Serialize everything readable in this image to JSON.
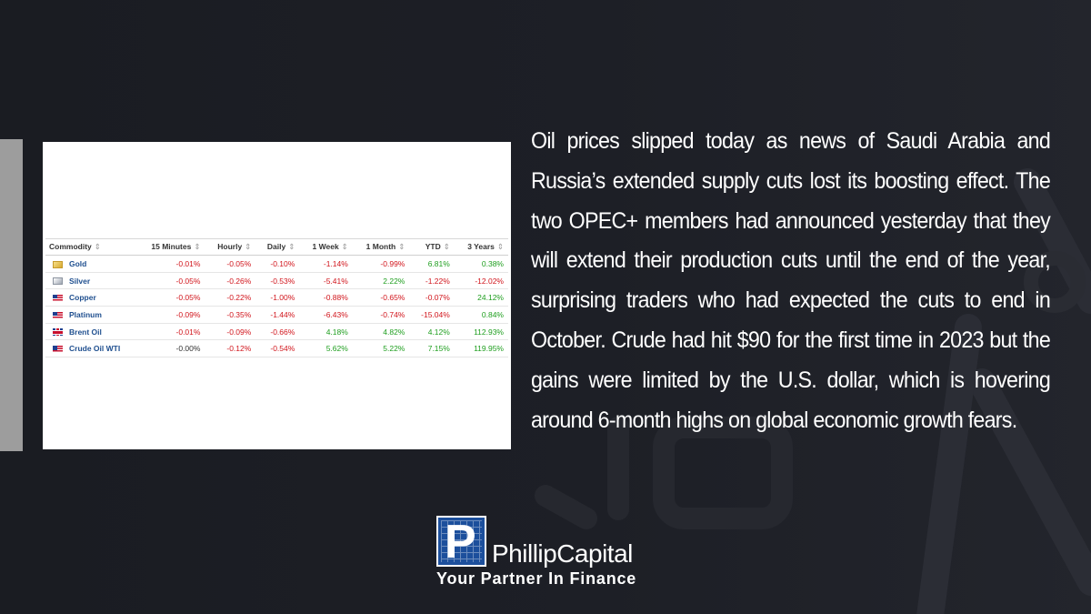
{
  "background_color": "#1b1d24",
  "table": {
    "columns": [
      "Commodity",
      "15 Minutes",
      "Hourly",
      "Daily",
      "1 Week",
      "1 Month",
      "YTD",
      "3 Years"
    ],
    "rows": [
      {
        "flag": "gold-icon",
        "name": "Gold",
        "values": [
          "-0.01%",
          "-0.05%",
          "-0.10%",
          "-1.14%",
          "-0.99%",
          "6.81%",
          "0.38%"
        ]
      },
      {
        "flag": "silver-icon",
        "name": "Silver",
        "values": [
          "-0.05%",
          "-0.26%",
          "-0.53%",
          "-5.41%",
          "2.22%",
          "-1.22%",
          "-12.02%"
        ]
      },
      {
        "flag": "us-flag-icon",
        "name": "Copper",
        "values": [
          "-0.05%",
          "-0.22%",
          "-1.00%",
          "-0.88%",
          "-0.65%",
          "-0.07%",
          "24.12%"
        ]
      },
      {
        "flag": "us-flag-icon",
        "name": "Platinum",
        "values": [
          "-0.09%",
          "-0.35%",
          "-1.44%",
          "-6.43%",
          "-0.74%",
          "-15.04%",
          "0.84%"
        ]
      },
      {
        "flag": "uk-flag-icon",
        "name": "Brent Oil",
        "values": [
          "-0.01%",
          "-0.09%",
          "-0.66%",
          "4.18%",
          "4.82%",
          "4.12%",
          "112.93%"
        ]
      },
      {
        "flag": "us-flag-icon",
        "name": "Crude Oil WTI",
        "values": [
          "-0.00%",
          "-0.12%",
          "-0.54%",
          "5.62%",
          "5.22%",
          "7.15%",
          "119.95%"
        ]
      }
    ],
    "colors": {
      "negative": "#d1141b",
      "positive": "#1e9e1e",
      "name": "#1f4f8f"
    }
  },
  "article": {
    "text": "Oil prices slipped today as news of Saudi Arabia and Russia’s extended supply cuts lost its boosting effect. The two OPEC+ members had announced yesterday that they will extend their production cuts until the end of the year, surprising traders who had expected the cuts to end in October. Crude had hit $90 for the first time in 2023 but the gains were limited by the U.S. dollar, which is hovering around 6-month highs on global economic growth fears."
  },
  "logo": {
    "letter": "P",
    "name": "PhillipCapital",
    "tagline": "Your Partner In Finance",
    "brand_color": "#1c4f9c"
  }
}
